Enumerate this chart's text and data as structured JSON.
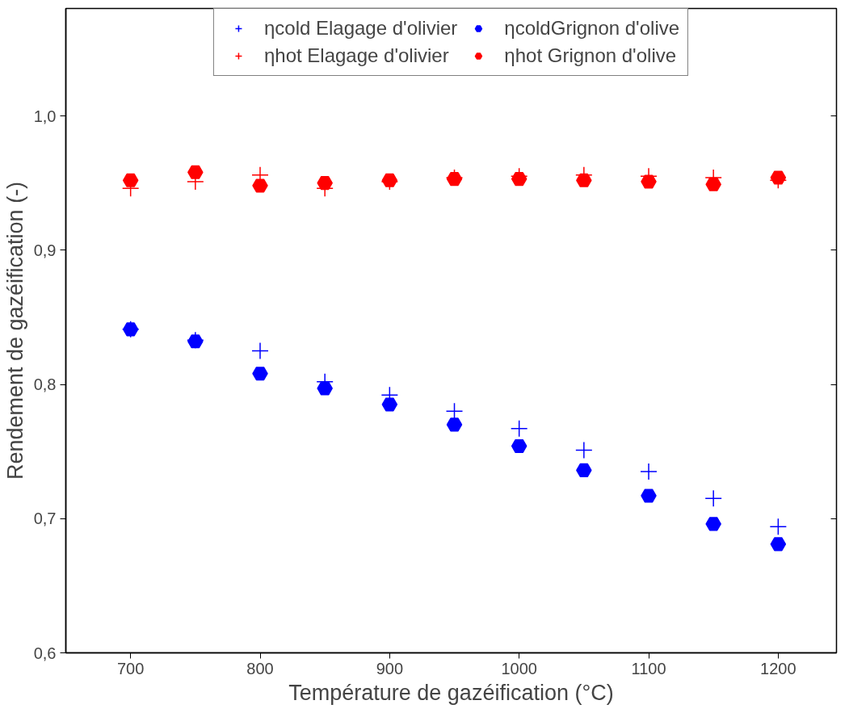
{
  "chart_data": {
    "type": "scatter",
    "xlabel": "Température de gazéification (°C)",
    "ylabel": "Rendement de gazéification (-)",
    "x": [
      700,
      750,
      800,
      850,
      900,
      950,
      1000,
      1050,
      1100,
      1150,
      1200
    ],
    "series": [
      {
        "name": "ηcold Elagage d'olivier",
        "color": "#0000ff",
        "marker": "cross",
        "values": [
          0.841,
          0.833,
          0.825,
          0.802,
          0.792,
          0.78,
          0.767,
          0.751,
          0.735,
          0.715,
          0.694
        ]
      },
      {
        "name": "ηhot Elagage d'olivier",
        "color": "#ff0000",
        "marker": "cross",
        "values": [
          0.946,
          0.951,
          0.956,
          0.946,
          0.951,
          0.954,
          0.955,
          0.956,
          0.955,
          0.954,
          0.952
        ]
      },
      {
        "name": "ηcoldGrignon d'olive",
        "color": "#0000ff",
        "marker": "circle",
        "values": [
          0.841,
          0.832,
          0.808,
          0.797,
          0.785,
          0.77,
          0.754,
          0.736,
          0.717,
          0.696,
          0.681
        ]
      },
      {
        "name": "ηhot Grignon d'olive",
        "color": "#ff0000",
        "marker": "circle",
        "values": [
          0.952,
          0.958,
          0.948,
          0.95,
          0.952,
          0.953,
          0.953,
          0.952,
          0.951,
          0.949,
          0.954
        ]
      }
    ],
    "xlim": [
      650,
      1245
    ],
    "xticks": [
      700,
      800,
      900,
      1000,
      1100,
      1200
    ],
    "ylim": [
      0.6,
      1.08
    ],
    "yticks": [
      {
        "value": 0.6,
        "label": "0,6"
      },
      {
        "value": 0.7,
        "label": "0,7"
      },
      {
        "value": 0.8,
        "label": "0,8"
      },
      {
        "value": 0.9,
        "label": "0,9"
      },
      {
        "value": 1.0,
        "label": "1,0"
      }
    ],
    "grid": false,
    "legend": "top"
  }
}
